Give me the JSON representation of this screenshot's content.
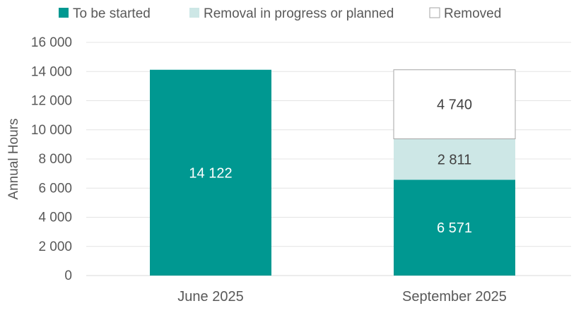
{
  "chart_data": {
    "type": "bar",
    "stacked": true,
    "categories": [
      "June 2025",
      "September 2025"
    ],
    "series": [
      {
        "name": "To be started",
        "values": [
          14122,
          6571
        ],
        "color": "#009891",
        "label_color": "#ffffff"
      },
      {
        "name": "Removal in progress or planned",
        "values": [
          0,
          2811
        ],
        "color": "#cde7e6",
        "label_color": "#404040"
      },
      {
        "name": "Removed",
        "values": [
          0,
          4740
        ],
        "color": "#ffffff",
        "label_color": "#404040",
        "outline": "#a6a6a6"
      }
    ],
    "data_labels": [
      [
        "14 122",
        "6 571"
      ],
      [
        "",
        "2 811"
      ],
      [
        "",
        "4 740"
      ]
    ],
    "title": "",
    "xlabel": "",
    "ylabel": "Annual Hours",
    "ylim": [
      0,
      16000
    ],
    "yticks": [
      0,
      2000,
      4000,
      6000,
      8000,
      10000,
      12000,
      14000,
      16000
    ],
    "ytick_labels": [
      "0",
      "2 000",
      "4 000",
      "6 000",
      "8 000",
      "10 000",
      "12 000",
      "14 000",
      "16 000"
    ],
    "grid": true,
    "legend_position": "top"
  }
}
